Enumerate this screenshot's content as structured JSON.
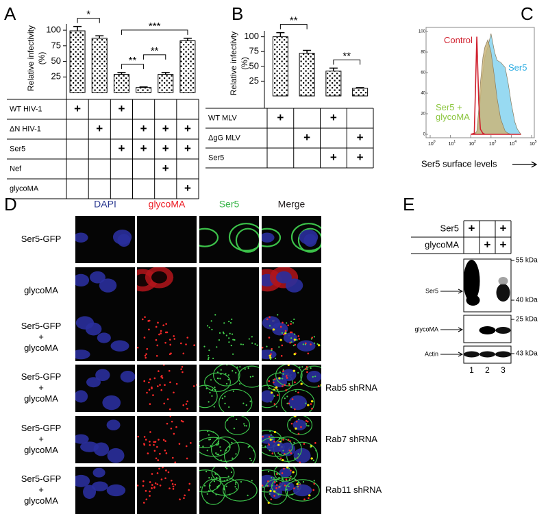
{
  "panel_labels": [
    "A",
    "B",
    "C",
    "D",
    "E"
  ],
  "chart_data": [
    {
      "type": "bar",
      "y_label": [
        "Relative infectivity",
        "(%)"
      ],
      "values": [
        99,
        87,
        29,
        8,
        29,
        83
      ],
      "errors": [
        7,
        4,
        3,
        1,
        3,
        4
      ],
      "color": "#000000",
      "ylim": [
        0,
        110
      ],
      "yticks": [
        25,
        50,
        75,
        100
      ],
      "significance": [
        {
          "label": "*",
          "from": 0,
          "to": 1
        },
        {
          "label": "**",
          "from": 2,
          "to": 3
        },
        {
          "label": "**",
          "from": 3,
          "to": 4
        },
        {
          "label": "***",
          "from": 2,
          "to": 5
        }
      ],
      "conditions": [
        {
          "label": "WT HIV-1",
          "cells": [
            "+",
            null,
            "+",
            null,
            null,
            null
          ]
        },
        {
          "label": "ΔN HIV-1",
          "cells": [
            null,
            "+",
            null,
            "+",
            "+",
            "+"
          ]
        },
        {
          "label": "Ser5",
          "cells": [
            null,
            null,
            "+",
            "+",
            "+",
            "+"
          ]
        },
        {
          "label": "Nef",
          "cells": [
            null,
            null,
            null,
            null,
            "+",
            null
          ]
        },
        {
          "label": "glycoMA",
          "cells": [
            null,
            null,
            null,
            null,
            null,
            "+"
          ]
        }
      ]
    },
    {
      "type": "bar",
      "y_label": [
        "Relative infectivty",
        "(%)"
      ],
      "values": [
        100,
        72,
        42,
        13
      ],
      "errors": [
        7,
        5,
        5,
        1
      ],
      "color": "#000000",
      "ylim": [
        0,
        110
      ],
      "yticks": [
        25,
        50,
        75,
        100
      ],
      "significance": [
        {
          "label": "**",
          "from": 0,
          "to": 1
        },
        {
          "label": "**",
          "from": 2,
          "to": 3
        }
      ],
      "conditions": [
        {
          "label": "WT MLV",
          "cells": [
            "+",
            null,
            "+",
            null
          ]
        },
        {
          "label": "ΔgG MLV",
          "cells": [
            null,
            "+",
            null,
            "+"
          ]
        },
        {
          "label": "Ser5",
          "cells": [
            null,
            null,
            "+",
            "+"
          ]
        }
      ]
    },
    {
      "type": "area",
      "x_label": "Ser5 surface levels",
      "log_x": true,
      "xlim": [
        1,
        100000
      ],
      "xticks": [
        {
          "value": 1,
          "label": "10",
          "exponent": "0"
        },
        {
          "value": 10,
          "label": "10",
          "exponent": "1"
        },
        {
          "value": 100,
          "label": "10",
          "exponent": "2"
        },
        {
          "value": 1000,
          "label": "10",
          "exponent": "3"
        },
        {
          "value": 10000,
          "label": "10",
          "exponent": "4"
        },
        {
          "value": 100000,
          "label": "10",
          "exponent": "5"
        }
      ],
      "ylim": [
        0,
        100
      ],
      "yticks": [
        0,
        20,
        40,
        60,
        80,
        100
      ],
      "x": [
        100,
        150,
        200,
        250,
        300,
        400,
        500,
        700,
        1000,
        1500,
        2000,
        3000,
        5000,
        7000,
        10000,
        15000,
        20000,
        30000
      ],
      "series": [
        {
          "name": "Ser5",
          "color": "#29abe2",
          "fill": "#86d3f0",
          "values": [
            0,
            0,
            2,
            15,
            35,
            60,
            75,
            85,
            98,
            80,
            72,
            70,
            65,
            50,
            30,
            12,
            5,
            0
          ]
        },
        {
          "name": "Ser5 + glycoMA",
          "color": "#8cc63f",
          "fill": "#c9b57a",
          "values": [
            0,
            0,
            3,
            25,
            50,
            75,
            85,
            92,
            80,
            55,
            35,
            15,
            3,
            1,
            0,
            0,
            0,
            0
          ]
        },
        {
          "name": "Control",
          "color": "#d0202e",
          "fill": "none",
          "values": [
            0,
            1,
            95,
            30,
            5,
            1,
            0,
            0,
            0,
            0,
            0,
            0,
            0,
            0,
            0,
            0,
            0,
            0
          ]
        }
      ]
    }
  ],
  "panel_d": {
    "columns": [
      {
        "label": "DAPI",
        "color": "#2b3990"
      },
      {
        "label": "glycoMA",
        "color": "#ed1c24"
      },
      {
        "label": "Ser5",
        "color": "#39b54a"
      },
      {
        "label": "Merge",
        "color": "#231f20"
      }
    ],
    "rows": [
      {
        "label": [
          "Ser5-GFP"
        ]
      },
      {
        "label": [
          "glycoMA"
        ]
      },
      {
        "label": [
          "Ser5-GFP",
          "+",
          "glycoMA"
        ]
      },
      {
        "label": [
          "Ser5-GFP",
          "+",
          "glycoMA"
        ],
        "note": "Rab5 shRNA"
      },
      {
        "label": [
          "Ser5-GFP",
          "+",
          "glycoMA"
        ],
        "note": "Rab7 shRNA"
      },
      {
        "label": [
          "Ser5-GFP",
          "+",
          "glycoMA"
        ],
        "note": "Rab11 shRNA"
      }
    ]
  },
  "panel_e": {
    "conditions": [
      {
        "label": "Ser5",
        "cells": [
          "+",
          null,
          "+"
        ]
      },
      {
        "label": "glycoMA",
        "cells": [
          null,
          "+",
          "+"
        ]
      }
    ],
    "blots": [
      {
        "label": "Ser5",
        "markers": [
          "55 kDa",
          "40 kDa"
        ]
      },
      {
        "label": "glycoMA",
        "markers": [
          "25 kDa"
        ]
      },
      {
        "label": "Actin",
        "markers": [
          "43 kDa"
        ]
      }
    ],
    "lanes": [
      "1",
      "2",
      "3"
    ]
  }
}
